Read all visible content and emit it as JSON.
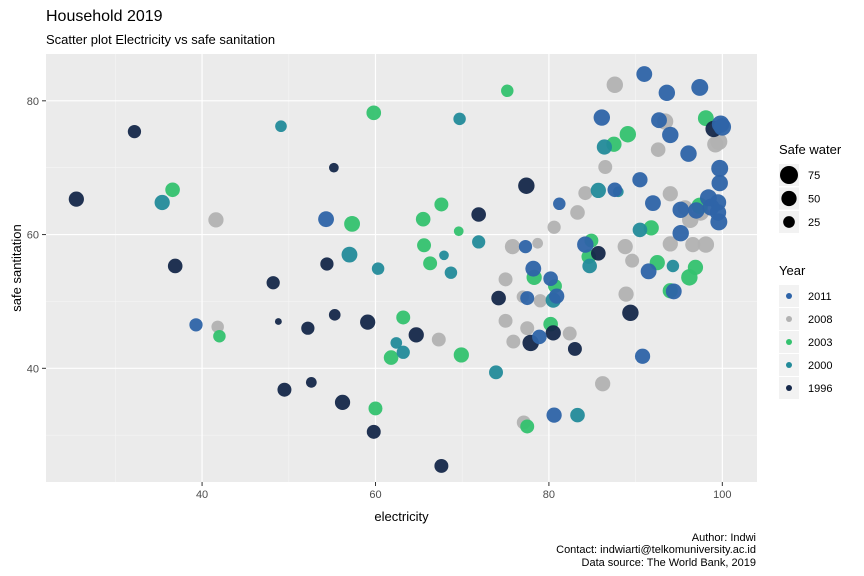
{
  "chart_data": {
    "type": "scatter",
    "title": "Household 2019",
    "subtitle": "Scatter plot Electricity vs safe sanitation",
    "xlabel": "electricity",
    "ylabel": "safe santitation",
    "xlim": [
      22,
      104
    ],
    "ylim": [
      23,
      87
    ],
    "x_ticks": [
      40,
      60,
      80,
      100
    ],
    "y_ticks": [
      40,
      60,
      80
    ],
    "grid": true,
    "legend_size": {
      "title": "Safe water",
      "entries": [
        {
          "label": "75",
          "value": 75
        },
        {
          "label": "50",
          "value": 50
        },
        {
          "label": "25",
          "value": 25
        }
      ]
    },
    "legend_color": {
      "title": "Year",
      "entries": [
        {
          "label": "2011",
          "color": "#2e64a8"
        },
        {
          "label": "2008",
          "color": "#b2b2b2"
        },
        {
          "label": "2003",
          "color": "#34c26f"
        },
        {
          "label": "2000",
          "color": "#238b9a"
        },
        {
          "label": "1996",
          "color": "#15284a"
        }
      ]
    },
    "caption": [
      "Author: Indwi",
      "Contact: indwiarti@telkomuniversity.ac.id",
      "Data source: The World Bank, 2019"
    ],
    "series": [
      {
        "name": "1996",
        "points": [
          {
            "x": 25.5,
            "y": 65.3,
            "w": 50
          },
          {
            "x": 32.2,
            "y": 75.4,
            "w": 35
          },
          {
            "x": 36.9,
            "y": 55.3,
            "w": 45
          },
          {
            "x": 48.2,
            "y": 52.8,
            "w": 35
          },
          {
            "x": 48.8,
            "y": 47.0,
            "w": 5
          },
          {
            "x": 49.5,
            "y": 36.8,
            "w": 40
          },
          {
            "x": 52.2,
            "y": 46.0,
            "w": 35
          },
          {
            "x": 52.6,
            "y": 37.9,
            "w": 20
          },
          {
            "x": 54.4,
            "y": 55.6,
            "w": 35
          },
          {
            "x": 55.2,
            "y": 70.0,
            "w": 15
          },
          {
            "x": 55.3,
            "y": 48.0,
            "w": 25
          },
          {
            "x": 56.2,
            "y": 34.9,
            "w": 50
          },
          {
            "x": 59.1,
            "y": 46.9,
            "w": 50
          },
          {
            "x": 59.8,
            "y": 30.5,
            "w": 40
          },
          {
            "x": 64.7,
            "y": 45.0,
            "w": 50
          },
          {
            "x": 67.6,
            "y": 25.4,
            "w": 40
          },
          {
            "x": 71.9,
            "y": 63.0,
            "w": 45
          },
          {
            "x": 74.2,
            "y": 50.5,
            "w": 45
          },
          {
            "x": 77.4,
            "y": 67.3,
            "w": 60
          },
          {
            "x": 77.9,
            "y": 43.8,
            "w": 60
          },
          {
            "x": 80.5,
            "y": 45.3,
            "w": 50
          },
          {
            "x": 83.0,
            "y": 42.9,
            "w": 40
          },
          {
            "x": 85.7,
            "y": 57.2,
            "w": 45
          },
          {
            "x": 89.4,
            "y": 48.3,
            "w": 60
          },
          {
            "x": 99.0,
            "y": 75.8,
            "w": 60
          }
        ]
      },
      {
        "name": "2000",
        "points": [
          {
            "x": 35.4,
            "y": 64.8,
            "w": 50
          },
          {
            "x": 49.1,
            "y": 76.2,
            "w": 25
          },
          {
            "x": 57.0,
            "y": 57.0,
            "w": 55
          },
          {
            "x": 60.3,
            "y": 54.9,
            "w": 30
          },
          {
            "x": 62.4,
            "y": 43.8,
            "w": 25
          },
          {
            "x": 63.2,
            "y": 42.4,
            "w": 35
          },
          {
            "x": 67.9,
            "y": 56.9,
            "w": 15
          },
          {
            "x": 68.7,
            "y": 54.3,
            "w": 30
          },
          {
            "x": 69.7,
            "y": 77.3,
            "w": 30
          },
          {
            "x": 71.9,
            "y": 58.9,
            "w": 35
          },
          {
            "x": 73.9,
            "y": 39.4,
            "w": 40
          },
          {
            "x": 80.5,
            "y": 50.2,
            "w": 50
          },
          {
            "x": 83.3,
            "y": 33.0,
            "w": 45
          },
          {
            "x": 84.7,
            "y": 55.3,
            "w": 45
          },
          {
            "x": 85.7,
            "y": 66.6,
            "w": 50
          },
          {
            "x": 86.4,
            "y": 73.1,
            "w": 50
          },
          {
            "x": 88.0,
            "y": 66.4,
            "w": 20
          },
          {
            "x": 90.5,
            "y": 60.7,
            "w": 45
          },
          {
            "x": 94.3,
            "y": 55.3,
            "w": 30
          }
        ]
      },
      {
        "name": "2003",
        "points": [
          {
            "x": 36.6,
            "y": 66.7,
            "w": 45
          },
          {
            "x": 42.0,
            "y": 44.8,
            "w": 30
          },
          {
            "x": 57.3,
            "y": 61.6,
            "w": 55
          },
          {
            "x": 59.8,
            "y": 78.2,
            "w": 45
          },
          {
            "x": 60.0,
            "y": 34.0,
            "w": 40
          },
          {
            "x": 61.8,
            "y": 41.6,
            "w": 45
          },
          {
            "x": 63.2,
            "y": 47.6,
            "w": 40
          },
          {
            "x": 65.5,
            "y": 62.3,
            "w": 45
          },
          {
            "x": 65.6,
            "y": 58.4,
            "w": 40
          },
          {
            "x": 66.3,
            "y": 55.7,
            "w": 40
          },
          {
            "x": 67.6,
            "y": 64.5,
            "w": 40
          },
          {
            "x": 69.6,
            "y": 60.5,
            "w": 15
          },
          {
            "x": 69.9,
            "y": 42.0,
            "w": 50
          },
          {
            "x": 75.2,
            "y": 81.5,
            "w": 30
          },
          {
            "x": 77.5,
            "y": 31.3,
            "w": 40
          },
          {
            "x": 78.3,
            "y": 53.6,
            "w": 50
          },
          {
            "x": 80.2,
            "y": 46.6,
            "w": 45
          },
          {
            "x": 80.7,
            "y": 52.3,
            "w": 40
          },
          {
            "x": 84.6,
            "y": 56.7,
            "w": 45
          },
          {
            "x": 84.9,
            "y": 59.1,
            "w": 40
          },
          {
            "x": 87.5,
            "y": 73.5,
            "w": 50
          },
          {
            "x": 89.1,
            "y": 75.0,
            "w": 60
          },
          {
            "x": 91.8,
            "y": 61.0,
            "w": 50
          },
          {
            "x": 92.5,
            "y": 55.8,
            "w": 50
          },
          {
            "x": 94.0,
            "y": 51.6,
            "w": 50
          },
          {
            "x": 96.2,
            "y": 53.6,
            "w": 60
          },
          {
            "x": 96.9,
            "y": 55.1,
            "w": 50
          },
          {
            "x": 97.4,
            "y": 64.3,
            "w": 60
          },
          {
            "x": 98.1,
            "y": 77.4,
            "w": 55
          }
        ]
      },
      {
        "name": "2008",
        "points": [
          {
            "x": 41.6,
            "y": 62.2,
            "w": 50
          },
          {
            "x": 41.8,
            "y": 46.2,
            "w": 30
          },
          {
            "x": 67.3,
            "y": 44.3,
            "w": 40
          },
          {
            "x": 75.0,
            "y": 53.3,
            "w": 40
          },
          {
            "x": 75.0,
            "y": 47.1,
            "w": 40
          },
          {
            "x": 75.8,
            "y": 58.2,
            "w": 50
          },
          {
            "x": 75.9,
            "y": 44.0,
            "w": 40
          },
          {
            "x": 77.0,
            "y": 50.7,
            "w": 30
          },
          {
            "x": 77.1,
            "y": 31.9,
            "w": 40
          },
          {
            "x": 77.5,
            "y": 46.0,
            "w": 40
          },
          {
            "x": 78.7,
            "y": 58.7,
            "w": 20
          },
          {
            "x": 79.0,
            "y": 50.1,
            "w": 35
          },
          {
            "x": 80.6,
            "y": 61.1,
            "w": 35
          },
          {
            "x": 82.4,
            "y": 45.2,
            "w": 40
          },
          {
            "x": 83.3,
            "y": 63.3,
            "w": 45
          },
          {
            "x": 84.2,
            "y": 66.2,
            "w": 40
          },
          {
            "x": 86.2,
            "y": 37.7,
            "w": 50
          },
          {
            "x": 86.5,
            "y": 70.1,
            "w": 40
          },
          {
            "x": 87.6,
            "y": 82.4,
            "w": 60
          },
          {
            "x": 88.8,
            "y": 58.2,
            "w": 50
          },
          {
            "x": 88.9,
            "y": 51.1,
            "w": 50
          },
          {
            "x": 89.6,
            "y": 56.1,
            "w": 40
          },
          {
            "x": 92.6,
            "y": 72.7,
            "w": 45
          },
          {
            "x": 93.4,
            "y": 76.9,
            "w": 60
          },
          {
            "x": 94.0,
            "y": 66.1,
            "w": 50
          },
          {
            "x": 94.0,
            "y": 58.6,
            "w": 50
          },
          {
            "x": 95.7,
            "y": 64.0,
            "w": 50
          },
          {
            "x": 96.3,
            "y": 62.2,
            "w": 60
          },
          {
            "x": 96.6,
            "y": 58.5,
            "w": 50
          },
          {
            "x": 97.5,
            "y": 63.3,
            "w": 60
          },
          {
            "x": 98.1,
            "y": 58.5,
            "w": 60
          },
          {
            "x": 99.2,
            "y": 73.5,
            "w": 60
          },
          {
            "x": 99.6,
            "y": 73.9,
            "w": 65
          }
        ]
      },
      {
        "name": "2011",
        "points": [
          {
            "x": 39.3,
            "y": 46.5,
            "w": 35
          },
          {
            "x": 54.3,
            "y": 62.3,
            "w": 55
          },
          {
            "x": 77.3,
            "y": 58.2,
            "w": 35
          },
          {
            "x": 77.5,
            "y": 50.5,
            "w": 40
          },
          {
            "x": 78.2,
            "y": 54.9,
            "w": 55
          },
          {
            "x": 78.9,
            "y": 44.7,
            "w": 45
          },
          {
            "x": 80.2,
            "y": 53.4,
            "w": 45
          },
          {
            "x": 80.6,
            "y": 33.0,
            "w": 50
          },
          {
            "x": 80.9,
            "y": 50.8,
            "w": 50
          },
          {
            "x": 81.2,
            "y": 64.6,
            "w": 30
          },
          {
            "x": 84.2,
            "y": 58.5,
            "w": 60
          },
          {
            "x": 86.1,
            "y": 77.5,
            "w": 60
          },
          {
            "x": 87.6,
            "y": 66.7,
            "w": 45
          },
          {
            "x": 90.5,
            "y": 68.2,
            "w": 50
          },
          {
            "x": 90.8,
            "y": 41.8,
            "w": 50
          },
          {
            "x": 91.0,
            "y": 84.0,
            "w": 55
          },
          {
            "x": 91.5,
            "y": 54.5,
            "w": 55
          },
          {
            "x": 92.0,
            "y": 64.7,
            "w": 55
          },
          {
            "x": 92.7,
            "y": 77.1,
            "w": 55
          },
          {
            "x": 93.6,
            "y": 81.2,
            "w": 60
          },
          {
            "x": 94.0,
            "y": 74.9,
            "w": 60
          },
          {
            "x": 94.4,
            "y": 51.5,
            "w": 55
          },
          {
            "x": 95.2,
            "y": 60.2,
            "w": 60
          },
          {
            "x": 95.2,
            "y": 63.7,
            "w": 60
          },
          {
            "x": 96.1,
            "y": 72.1,
            "w": 60
          },
          {
            "x": 97.0,
            "y": 63.6,
            "w": 60
          },
          {
            "x": 97.4,
            "y": 82.0,
            "w": 65
          },
          {
            "x": 98.4,
            "y": 65.5,
            "w": 65
          },
          {
            "x": 98.7,
            "y": 64.1,
            "w": 65
          },
          {
            "x": 99.5,
            "y": 64.8,
            "w": 60
          },
          {
            "x": 99.5,
            "y": 63.3,
            "w": 60
          },
          {
            "x": 99.6,
            "y": 61.9,
            "w": 65
          },
          {
            "x": 99.7,
            "y": 67.7,
            "w": 60
          },
          {
            "x": 99.7,
            "y": 69.9,
            "w": 65
          },
          {
            "x": 99.8,
            "y": 76.5,
            "w": 70
          },
          {
            "x": 100.0,
            "y": 76.1,
            "w": 70
          }
        ]
      }
    ]
  }
}
